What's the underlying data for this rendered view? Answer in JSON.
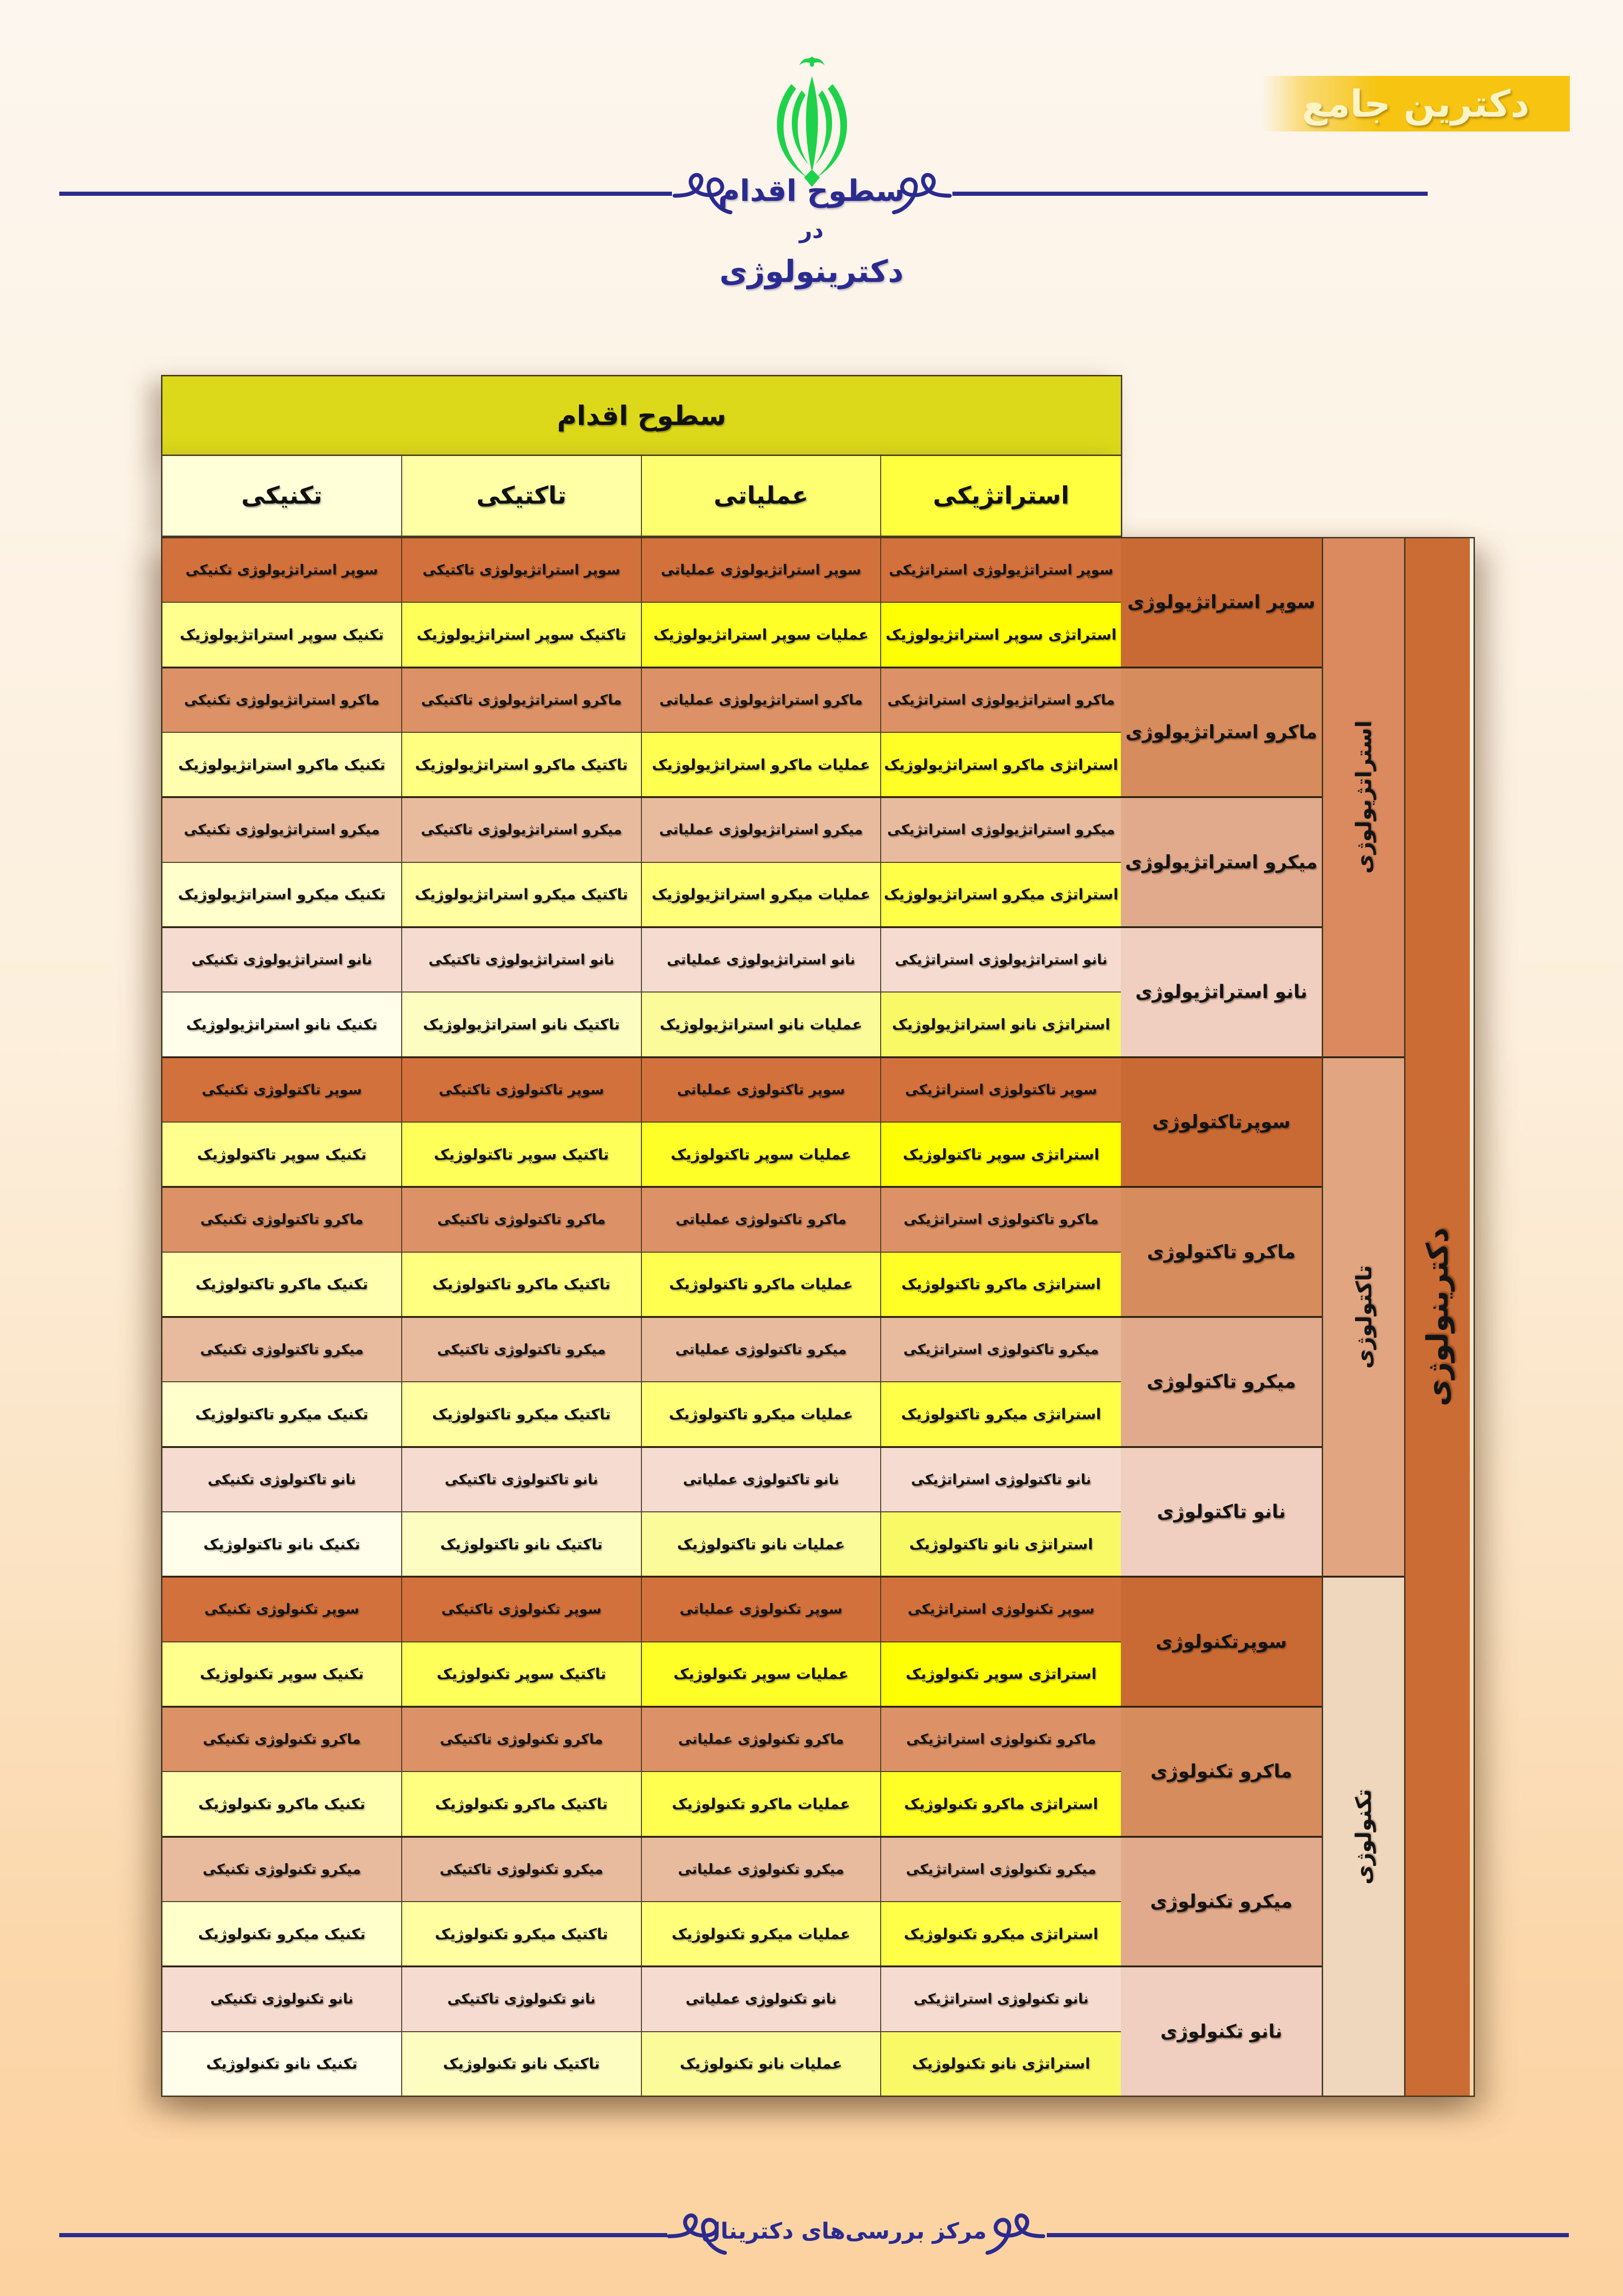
{
  "banner": {
    "label": "دکترین جامع",
    "background": "#f6c411",
    "text_color": "#fdf4c6"
  },
  "emblem": {
    "name": "iran-allah-emblem",
    "color": "#1ed24a"
  },
  "title": {
    "line1": "سطوح اقدام",
    "line2": "در",
    "line3": "دکترینولوژی",
    "color": "#2b2a8e"
  },
  "table": {
    "title": "سطوح اقدام",
    "columns": [
      "استراتژیکی",
      "عملیاتی",
      "تاکتیکی",
      "تکنیکی"
    ],
    "doctrine_label": "دکترینولوژی",
    "sections": [
      {
        "label": "استراتژیولوژی",
        "groups": [
          {
            "label": "سوپر استراتژیولوژی",
            "terminology_row": [
              "سوپر استراتژیولوژی استراتژیکی",
              "سوپر استراتژیولوژی عملیاتی",
              "سوپر استراتژیولوژی تاکتیکی",
              "سوپر استراتژیولوژی تکنیکی"
            ],
            "action_row": [
              "استراتژی سوپر استراتژیولوژیک",
              "عملیات سوپر استراتژیولوژیک",
              "تاکتیک سوپر استراتژیولوژیک",
              "تکنیک سوپر استراتژیولوژیک"
            ]
          },
          {
            "label": "ماکرو استراتژیولوژی",
            "terminology_row": [
              "ماکرو استراتژیولوژی استراتژیکی",
              "ماکرو استراتژیولوژی عملیاتی",
              "ماکرو استراتژیولوژی تاکتیکی",
              "ماکرو استراتژیولوژی تکنیکی"
            ],
            "action_row": [
              "استراتژی ماکرو استراتژیولوژیک",
              "عملیات ماکرو استراتژیولوژیک",
              "تاکتیک ماکرو استراتژیولوژیک",
              "تکنیک ماکرو استراتژیولوژیک"
            ]
          },
          {
            "label": "میکرو استراتژیولوژی",
            "terminology_row": [
              "میکرو استراتژیولوژی استراتژیکی",
              "میکرو استراتژیولوژی عملیاتی",
              "میکرو استراتژیولوژی تاکتیکی",
              "میکرو استراتژیولوژی تکنیکی"
            ],
            "action_row": [
              "استراتژی میکرو استراتژیولوژیک",
              "عملیات میکرو استراتژیولوژیک",
              "تاکتیک میکرو استراتژیولوژیک",
              "تکنیک میکرو استراتژیولوژیک"
            ]
          },
          {
            "label": "نانو استراتژیولوژی",
            "terminology_row": [
              "نانو استراتژیولوژی استراتژیکی",
              "نانو استراتژیولوژی عملیاتی",
              "نانو استراتژیولوژی تاکتیکی",
              "نانو استراتژیولوژی تکنیکی"
            ],
            "action_row": [
              "استراتژی نانو استراتژیولوژیک",
              "عملیات نانو استراتژیولوژیک",
              "تاکتیک نانو استراتژیولوژیک",
              "تکنیک نانو استراتژیولوژیک"
            ]
          }
        ]
      },
      {
        "label": "تاکتولوژی",
        "groups": [
          {
            "label": "سوپرتاکتولوژی",
            "terminology_row": [
              "سوپر تاکتولوژی استراتژیکی",
              "سوپر تاکتولوژی عملیاتی",
              "سوپر تاکتولوژی تاکتیکی",
              "سوپر تاکتولوژی تکنیکی"
            ],
            "action_row": [
              "استراتژی سوپر تاکتولوژیک",
              "عملیات سوپر تاکتولوژیک",
              "تاکتیک سوپر تاکتولوژیک",
              "تکنیک سوپر تاکتولوژیک"
            ]
          },
          {
            "label": "ماکرو تاکتولوژی",
            "terminology_row": [
              "ماکرو تاکتولوژی استراتژیکی",
              "ماکرو تاکتولوژی عملیاتی",
              "ماکرو تاکتولوژی تاکتیکی",
              "ماکرو تاکتولوژی تکنیکی"
            ],
            "action_row": [
              "استراتژی ماکرو تاکتولوژیک",
              "عملیات ماکرو تاکتولوژیک",
              "تاکتیک ماکرو تاکتولوژیک",
              "تکنیک ماکرو تاکتولوژیک"
            ]
          },
          {
            "label": "میکرو تاکتولوژی",
            "terminology_row": [
              "میکرو تاکتولوژی استراتژیکی",
              "میکرو تاکتولوژی عملیاتی",
              "میکرو تاکتولوژی تاکتیکی",
              "میکرو تاکتولوژی تکنیکی"
            ],
            "action_row": [
              "استراتژی میکرو تاکتولوژیک",
              "عملیات میکرو تاکتولوژیک",
              "تاکتیک میکرو تاکتولوژیک",
              "تکنیک میکرو تاکتولوژیک"
            ]
          },
          {
            "label": "نانو تاکتولوژی",
            "terminology_row": [
              "نانو تاکتولوژی استراتژیکی",
              "نانو تاکتولوژی عملیاتی",
              "نانو تاکتولوژی تاکتیکی",
              "نانو تاکتولوژی تکنیکی"
            ],
            "action_row": [
              "استراتژی نانو تاکتولوژیک",
              "عملیات نانو تاکتولوژیک",
              "تاکتیک نانو تاکتولوژیک",
              "تکنیک نانو تاکتولوژیک"
            ]
          }
        ]
      },
      {
        "label": "تکنولوژی",
        "groups": [
          {
            "label": "سوپرتکنولوژی",
            "terminology_row": [
              "سوپر تکنولوژی استراتژیکی",
              "سوپر تکنولوژی عملیاتی",
              "سوپر تکنولوژی تاکتیکی",
              "سوپر تکنولوژی تکنیکی"
            ],
            "action_row": [
              "استراتژی سوپر تکنولوژیک",
              "عملیات سوپر تکنولوژیک",
              "تاکتیک سوپر تکنولوژیک",
              "تکنیک سوپر تکنولوژیک"
            ]
          },
          {
            "label": "ماکرو تکنولوژی",
            "terminology_row": [
              "ماکرو تکنولوژی استراتژیکی",
              "ماکرو تکنولوژی عملیاتی",
              "ماکرو تکنولوژی تاکتیکی",
              "ماکرو تکنولوژی تکنیکی"
            ],
            "action_row": [
              "استراتژی ماکرو تکنولوژیک",
              "عملیات ماکرو تکنولوژیک",
              "تاکتیک ماکرو تکنولوژیک",
              "تکنیک ماکرو تکنولوژیک"
            ]
          },
          {
            "label": "میکرو تکنولوژی",
            "terminology_row": [
              "میکرو تکنولوژی استراتژیکی",
              "میکرو تکنولوژی عملیاتی",
              "میکرو تکنولوژی تاکتیکی",
              "میکرو تکنولوژی تکنیکی"
            ],
            "action_row": [
              "استراتژی میکرو تکنولوژیک",
              "عملیات میکرو تکنولوژیک",
              "تاکتیک میکرو تکنولوژیک",
              "تکنیک میکرو تکنولوژیک"
            ]
          },
          {
            "label": "نانو تکنولوژی",
            "terminology_row": [
              "نانو تکنولوژی استراتژیکی",
              "نانو تکنولوژی عملیاتی",
              "نانو تکنولوژی تاکتیکی",
              "نانو تکنولوژی تکنیکی"
            ],
            "action_row": [
              "استراتژی نانو تکنولوژیک",
              "عملیات نانو تکنولوژیک",
              "تاکتیک نانو تکنولوژیک",
              "تکنیک نانو تکنولوژیک"
            ]
          }
        ]
      }
    ]
  },
  "footer": {
    "label": "مرکز بررسی‌های دکترینال"
  },
  "colors": {
    "page_top": "#fdf6ee",
    "page_bottom": "#fcd2a0",
    "navy": "#2b2a8e",
    "table_border": "#443823",
    "table_title_bg": "#dcd91a",
    "column_header_bgs": [
      "#ffff3f",
      "#ffff72",
      "#ffffa6",
      "#ffffd8"
    ],
    "terminology_row_bgs": [
      "#d2713c",
      "#dc9266",
      "#e9bb9e",
      "#f6dcd0"
    ],
    "group_label_bgs": [
      "#c96a35",
      "#d78c5e",
      "#e2aa8d",
      "#f0cfc0"
    ],
    "section_strip_bgs": [
      "#db8a60",
      "#e2a581",
      "#eed7bd"
    ],
    "doctrine_strip_bg": "#cb6c34"
  }
}
